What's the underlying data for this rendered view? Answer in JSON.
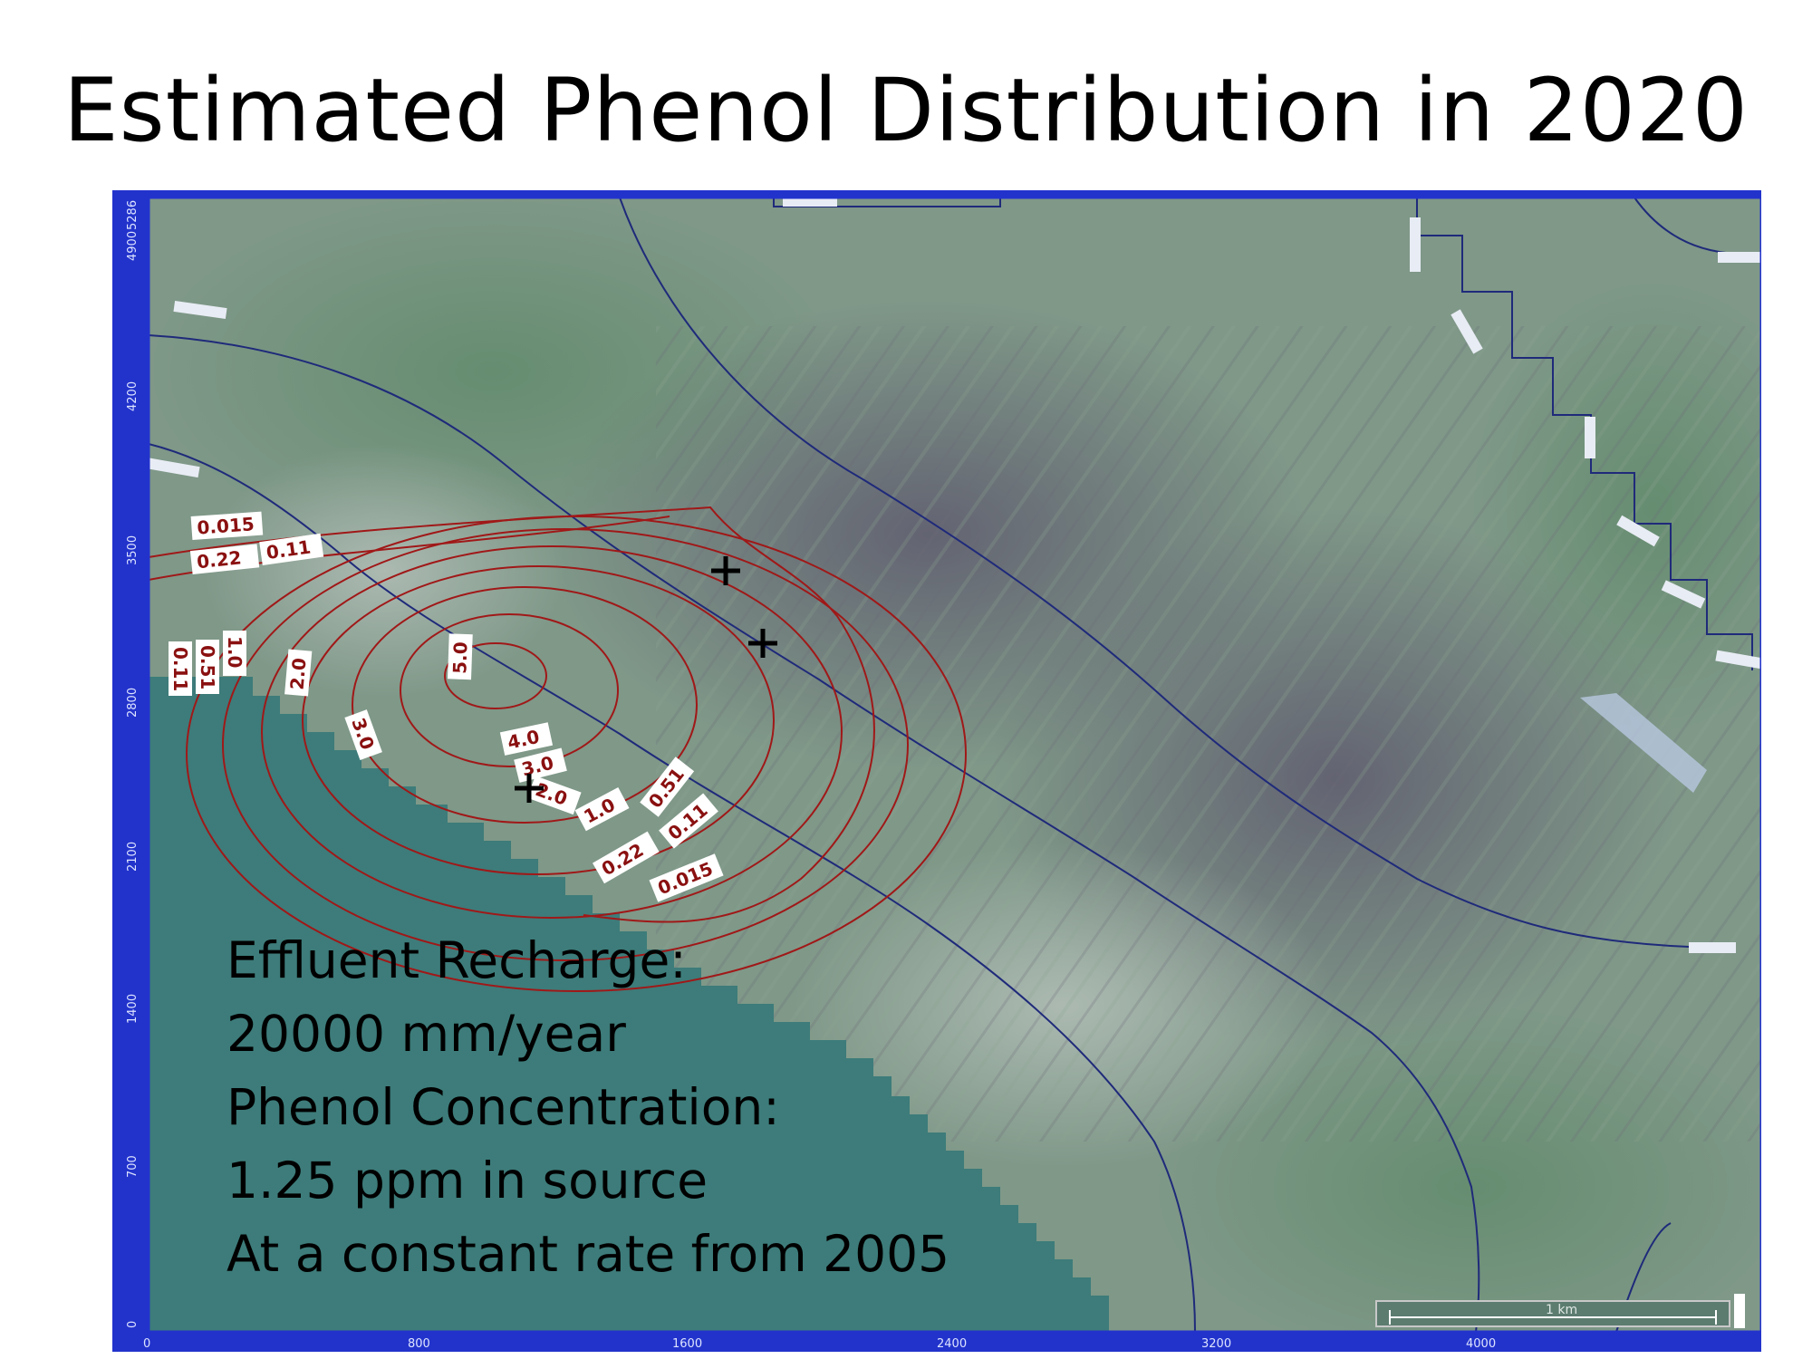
{
  "title": "Estimated Phenol Distribution in 2020",
  "map": {
    "x_axis_ticks": [
      "0",
      "800",
      "1600",
      "2400",
      "3200",
      "4000"
    ],
    "y_axis_ticks": [
      "0",
      "700",
      "1400",
      "2100",
      "2800",
      "3500",
      "4200",
      "4900",
      "5286"
    ],
    "scale_bar_label": "1 km",
    "contour_labels": [
      "0.015",
      "0.11",
      "0.22",
      "0.11",
      "0.51",
      "1.0",
      "2.0",
      "3.0",
      "5.0",
      "4.0",
      "3.0",
      "2.0",
      "1.0",
      "0.51",
      "0.11",
      "0.22",
      "0.015"
    ],
    "source_well_markers": 3,
    "colors": {
      "inactive_zone": "#3d7c7a",
      "concentration_contour": "#a01818",
      "head_contour": "#1f2a7a",
      "axis_frame": "#2233cc",
      "aerial_base": "#7f9888"
    }
  },
  "info": {
    "line1": "Effluent Recharge:",
    "line2": "20000 mm/year",
    "line3": "Phenol Concentration:",
    "line4": "1.25 ppm in source",
    "line5": "At a constant rate from 2005"
  }
}
